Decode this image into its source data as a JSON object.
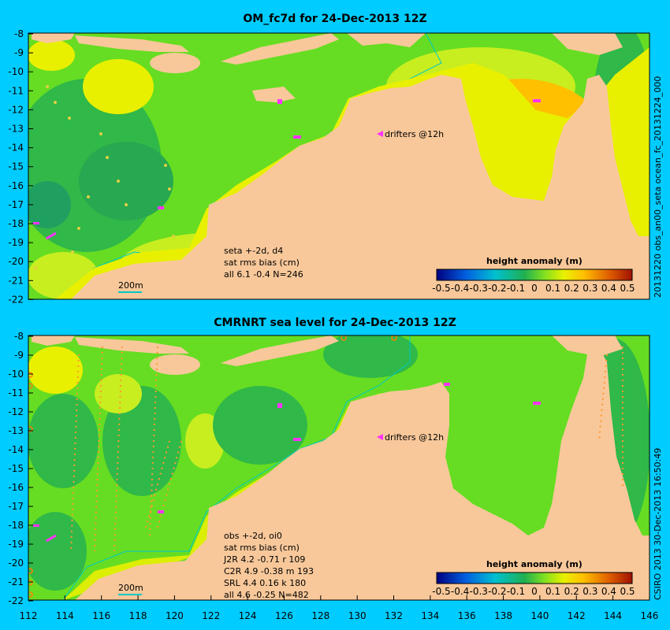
{
  "top_panel": {
    "title": "OM_fc7d for 24-Dec-2013 12Z",
    "side_label": "20131220 obs_an00_seta      ocean_fc_20131224_000",
    "drifters_label": "drifters @12h",
    "stats": [
      "seta +-2d, d4",
      "sat rms bias (cm)",
      "all  6.1 -0.4 N=246"
    ],
    "scale_label": "200m",
    "colorbar_title": "height anomaly (m)"
  },
  "bottom_panel": {
    "title": "CMRNRT sea level  for 24-Dec-2013 12Z",
    "side_label": "CSIRO 2013   30-Dec-2013 16:50:49",
    "drifters_label": "drifters @12h",
    "stats": [
      "obs +-2d, oi0",
      "sat rms bias (cm)",
      "J2R   4.2 -0.71 r 109",
      "C2R   4.9 -0.38 m 193",
      "SRL   4.4  0.16 k 180",
      "all   4.6 -0.25 N=482"
    ],
    "scale_label": "200m",
    "colorbar_title": "height anomaly (m)"
  },
  "colorbar": {
    "ticks": [
      "-0.5",
      "-0.4",
      "-0.3",
      "-0.2",
      "-0.1",
      "0",
      "0.1",
      "0.2",
      "0.3",
      "0.4",
      "0.5"
    ],
    "colors": [
      "#000080",
      "#0040d0",
      "#0090e0",
      "#00c8c0",
      "#20b050",
      "#80e020",
      "#e8f000",
      "#ffc000",
      "#f08000",
      "#d84000",
      "#a01000"
    ]
  },
  "x_axis": {
    "ticks": [
      "112",
      "114",
      "116",
      "118",
      "120",
      "122",
      "124",
      "126",
      "128",
      "130",
      "132",
      "134",
      "136",
      "138",
      "140",
      "142",
      "144",
      "146"
    ]
  },
  "y_axis": {
    "ticks": [
      "-8",
      "-9",
      "-10",
      "-11",
      "-12",
      "-13",
      "-14",
      "-15",
      "-16",
      "-17",
      "-18",
      "-19",
      "-20",
      "-21",
      "-22"
    ]
  },
  "colors": {
    "background": "#00ccff",
    "land": "#f8c89a",
    "sea_base": "#66dd22",
    "drifter": "#ff33ff"
  }
}
